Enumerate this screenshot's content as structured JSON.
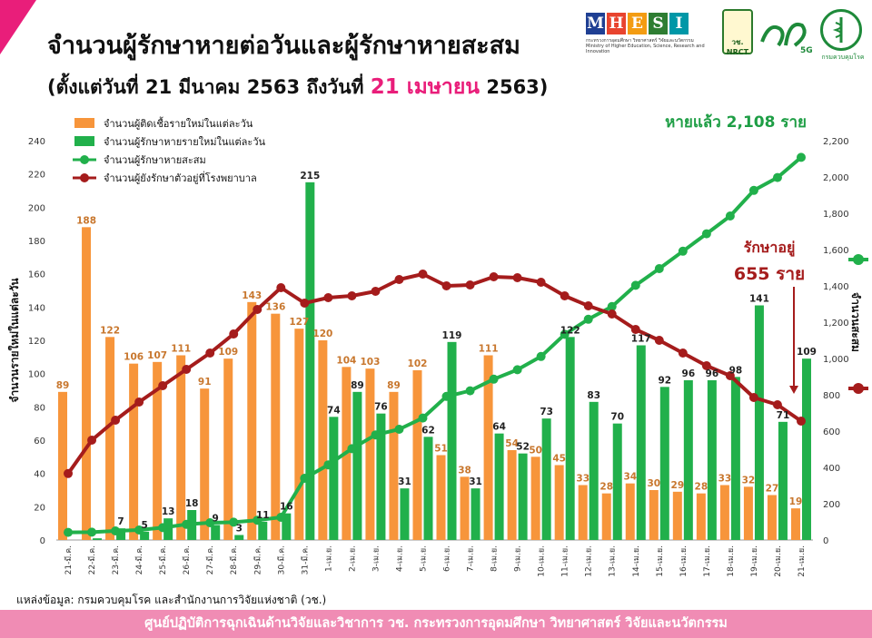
{
  "header": {
    "title": "จำนวนผู้รักษาหายต่อวันและผู้รักษาหายสะสม",
    "subtitle_pre": "(ตั้งแต่วันที่ 21 มีนาคม 2563 ถึงวันที่ ",
    "subtitle_hl": "21 เมษายน",
    "subtitle_post": " 2563)"
  },
  "logos": {
    "mhesi_letters": [
      "M",
      "H",
      "E",
      "S",
      "I"
    ],
    "mhesi_colors": [
      "#1f3f93",
      "#e8442e",
      "#f39c12",
      "#2e7d32",
      "#0097a7"
    ],
    "mhesi_caption_th": "กระทรวงการอุดมศึกษา วิทยาศาสตร์ วิจัยและนวัตกรรม",
    "mhesi_caption_en": "Ministry of Higher Education, Science, Research and Innovation",
    "nrct": "วช. NRCT",
    "five_g": "5G",
    "ddc_caption": "กรมควบคุมโรค"
  },
  "chart_data": {
    "type": "bar",
    "categories": [
      "21-มี.ค.",
      "22-มี.ค.",
      "23-มี.ค.",
      "24-มี.ค.",
      "25-มี.ค.",
      "26-มี.ค.",
      "27-มี.ค.",
      "28-มี.ค.",
      "29-มี.ค.",
      "30-มี.ค.",
      "31-มี.ค.",
      "1-เม.ย.",
      "2-เม.ย.",
      "3-เม.ย.",
      "4-เม.ย.",
      "5-เม.ย.",
      "6-เม.ย.",
      "7-เม.ย.",
      "8-เม.ย.",
      "9-เม.ย.",
      "10-เม.ย.",
      "11-เม.ย.",
      "12-เม.ย.",
      "13-เม.ย.",
      "14-เม.ย.",
      "15-เม.ย.",
      "16-เม.ย.",
      "17-เม.ย.",
      "18-เม.ย.",
      "19-เม.ย.",
      "20-เม.ย.",
      "21-เม.ย."
    ],
    "series": [
      {
        "name": "จำนวนผู้ติดเชื้อรายใหม่ในแต่ละวัน",
        "type": "bar",
        "axis": "left",
        "color": "#f7953b",
        "values": [
          89,
          188,
          122,
          106,
          107,
          111,
          91,
          109,
          143,
          136,
          127,
          120,
          104,
          103,
          89,
          102,
          51,
          38,
          111,
          54,
          50,
          45,
          33,
          28,
          34,
          30,
          29,
          28,
          33,
          32,
          27,
          19
        ]
      },
      {
        "name": "จำนวนผู้รักษาหายรายใหม่ในแต่ละวัน",
        "type": "bar",
        "axis": "left",
        "color": "#21b04b",
        "values": [
          0,
          1,
          7,
          5,
          13,
          18,
          9,
          3,
          11,
          16,
          215,
          74,
          89,
          76,
          31,
          62,
          119,
          31,
          64,
          52,
          73,
          122,
          83,
          70,
          117,
          92,
          96,
          96,
          98,
          141,
          71,
          109
        ]
      },
      {
        "name": "จำนวนผู้รักษาหายสะสม",
        "type": "line",
        "axis": "right",
        "color": "#21b04b",
        "values": [
          42,
          43,
          50,
          55,
          68,
          86,
          95,
          98,
          109,
          125,
          340,
          414,
          503,
          579,
          610,
          672,
          791,
          822,
          886,
          938,
          1011,
          1133,
          1216,
          1286,
          1403,
          1495,
          1591,
          1687,
          1785,
          1926,
          1997,
          2108
        ]
      },
      {
        "name": "จำนวนผู้ยังรักษาตัวอยู่ที่โรงพยาบาล",
        "type": "line",
        "axis": "right",
        "color": "#a51c1c",
        "values": [
          366,
          550,
          660,
          760,
          850,
          940,
          1030,
          1135,
          1270,
          1390,
          1305,
          1335,
          1345,
          1370,
          1435,
          1465,
          1400,
          1405,
          1450,
          1445,
          1420,
          1345,
          1290,
          1245,
          1160,
          1100,
          1030,
          960,
          905,
          785,
          745,
          655
        ]
      }
    ],
    "bar_labels": {
      "orange": [
        "89",
        "188",
        "122",
        "106",
        "107",
        "111",
        "91",
        "109",
        "143",
        "136",
        "127",
        "120",
        "104",
        "103",
        "89",
        "102",
        "51",
        "38",
        "111",
        "54",
        "50",
        "45",
        "33",
        "28",
        "34",
        "30",
        "29",
        "28",
        "33",
        "32",
        "27",
        "19"
      ],
      "green": [
        "",
        "",
        "7",
        "5",
        "13",
        "18",
        "9",
        "3",
        "11",
        "16",
        "215",
        "74",
        "89",
        "76",
        "31",
        "62",
        "119",
        "31",
        "64",
        "52",
        "73",
        "122",
        "83",
        "70",
        "117",
        "92",
        "96",
        "96",
        "98",
        "141",
        "71",
        "109"
      ]
    },
    "left_axis": {
      "label": "จำนวนรายใหม่ในแต่ละวัน",
      "min": 0,
      "max": 240,
      "ticks": [
        "0",
        "20",
        "40",
        "60",
        "80",
        "100",
        "120",
        "140",
        "160",
        "180",
        "200",
        "220",
        "240"
      ]
    },
    "right_axis": {
      "label": "จำนวนสะสม",
      "min": 0,
      "max": 2200,
      "ticks": [
        "0",
        "200",
        "400",
        "600",
        "800",
        "1,000",
        "1,200",
        "1,400",
        "1,600",
        "1,800",
        "2,000",
        "2,200"
      ]
    },
    "legend_position": "top-left",
    "grid": false,
    "annotations": {
      "recovered_total": "หายแล้ว 2,108 ราย",
      "in_hospital_line1": "รักษาอยู่",
      "in_hospital_line2": "655 ราย"
    }
  },
  "source": "แหล่งข้อมูล: กรมควบคุมโรค และสำนักงานการวิจัยแห่งชาติ (วช.)",
  "footer": "ศูนย์ปฏิบัติการฉุกเฉินด้านวิจัยและวิชาการ   วช.   กระทรวงการอุดมศึกษา วิทยาศาสตร์ วิจัยและนวัตกรรม"
}
